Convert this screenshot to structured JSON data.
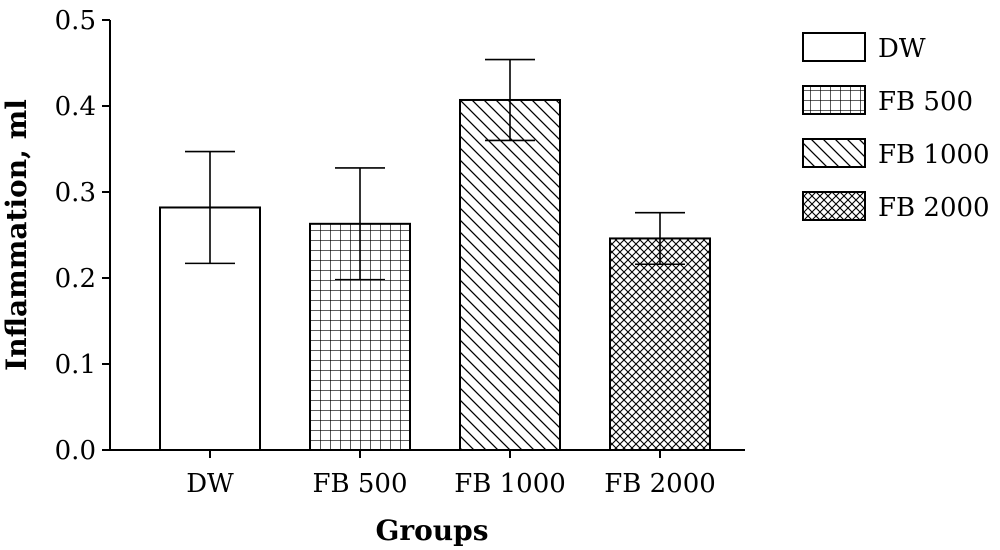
{
  "chart_data": {
    "type": "bar",
    "title": "",
    "xlabel": "Groups",
    "ylabel": "Inflammation, ml",
    "categories": [
      "DW",
      "FB 500",
      "FB 1000",
      "FB 2000"
    ],
    "values": [
      0.282,
      0.263,
      0.407,
      0.246
    ],
    "error": [
      0.065,
      0.065,
      0.047,
      0.03
    ],
    "ylim": [
      0,
      0.5
    ],
    "yticks": [
      "0.0",
      "0.1",
      "0.2",
      "0.3",
      "0.4",
      "0.5"
    ],
    "grid": false,
    "legend": {
      "placement": "right",
      "entries": [
        "DW",
        "FB 500",
        "FB 1000",
        "FB 2000"
      ]
    },
    "patterns": [
      "blank",
      "grid",
      "diagonal",
      "crosshatch"
    ],
    "colors": {
      "stroke": "#000000",
      "fill": "#ffffff"
    }
  }
}
